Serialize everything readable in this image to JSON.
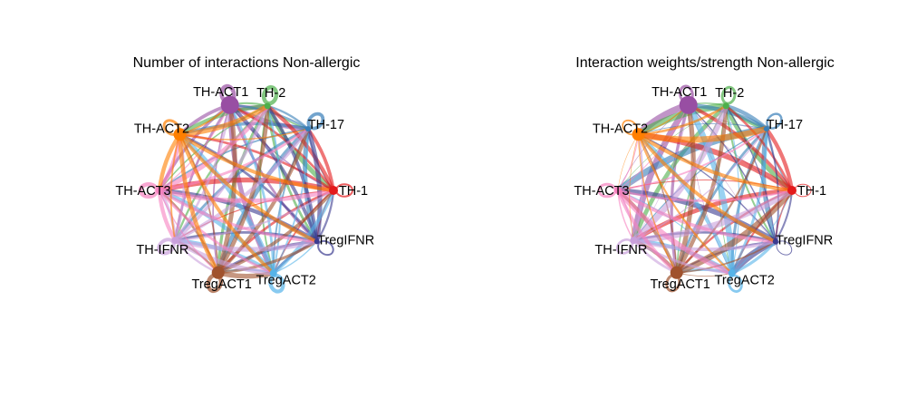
{
  "diagrams": [
    {
      "id": "count",
      "title": "Number of interactions Non-allergic",
      "nodes": [
        {
          "id": "TH-ACT1",
          "label": "TH-ACT1",
          "color": "#984ea3",
          "size": 10
        },
        {
          "id": "TH-2",
          "label": "TH-2",
          "color": "#4daf4a",
          "size": 3.5
        },
        {
          "id": "TH-17",
          "label": "TH-17",
          "color": "#377eb8",
          "size": 3
        },
        {
          "id": "TH-1",
          "label": "TH-1",
          "color": "#e41a1c",
          "size": 5
        },
        {
          "id": "TregIFNR",
          "label": "TregIFNR",
          "color": "#3b3b8f",
          "size": 3
        },
        {
          "id": "TregACT2",
          "label": "TregACT2",
          "color": "#56b4e9",
          "size": 4
        },
        {
          "id": "TregACT1",
          "label": "TregACT1",
          "color": "#a0522d",
          "size": 7
        },
        {
          "id": "TH-IFNR",
          "label": "TH-IFNR",
          "color": "#c9a0dc",
          "size": 4
        },
        {
          "id": "TH-ACT3",
          "label": "TH-ACT3",
          "color": "#f781bf",
          "size": 4
        },
        {
          "id": "TH-ACT2",
          "label": "TH-ACT2",
          "color": "#ff7f00",
          "size": 7
        }
      ]
    },
    {
      "id": "weight",
      "title": "Interaction weights/strength Non-allergic",
      "nodes": [
        {
          "id": "TH-ACT1",
          "label": "TH-ACT1",
          "color": "#984ea3",
          "size": 10
        },
        {
          "id": "TH-2",
          "label": "TH-2",
          "color": "#4daf4a",
          "size": 3.5
        },
        {
          "id": "TH-17",
          "label": "TH-17",
          "color": "#377eb8",
          "size": 3
        },
        {
          "id": "TH-1",
          "label": "TH-1",
          "color": "#e41a1c",
          "size": 5
        },
        {
          "id": "TregIFNR",
          "label": "TregIFNR",
          "color": "#3b3b8f",
          "size": 3
        },
        {
          "id": "TregACT2",
          "label": "TregACT2",
          "color": "#56b4e9",
          "size": 4
        },
        {
          "id": "TregACT1",
          "label": "TregACT1",
          "color": "#a0522d",
          "size": 7
        },
        {
          "id": "TH-IFNR",
          "label": "TH-IFNR",
          "color": "#c9a0dc",
          "size": 4
        },
        {
          "id": "TH-ACT3",
          "label": "TH-ACT3",
          "color": "#f781bf",
          "size": 4
        },
        {
          "id": "TH-ACT2",
          "label": "TH-ACT2",
          "color": "#ff7f00",
          "size": 7
        }
      ]
    }
  ]
}
